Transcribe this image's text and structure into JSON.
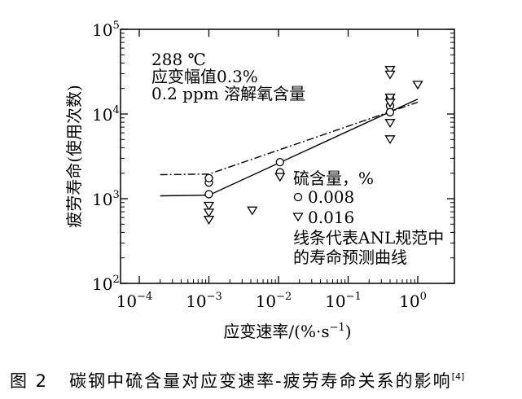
{
  "caption": {
    "figure_number": "图 2",
    "text": "碳钢中硫含量对应变速率-疲劳寿命关系的影响",
    "ref": "[4]"
  },
  "chart_data": {
    "type": "scatter",
    "xlabel": "应变速率/(%·s⁻¹)",
    "ylabel": "疲劳寿命(使用次数)",
    "x_scale": "log",
    "y_scale": "log",
    "xlim": [
      0.0001,
      1
    ],
    "ylim": [
      100,
      100000
    ],
    "x_ticks": [
      0.0001,
      0.001,
      0.01,
      0.1,
      1
    ],
    "x_tick_labels": [
      {
        "base": "10",
        "exp": "−4"
      },
      {
        "base": "10",
        "exp": "−3"
      },
      {
        "base": "10",
        "exp": "−2"
      },
      {
        "base": "10",
        "exp": "−1"
      },
      {
        "base": "10",
        "exp": "0"
      }
    ],
    "y_ticks": [
      100,
      1000,
      10000,
      100000
    ],
    "y_tick_labels": [
      {
        "base": "10",
        "exp": "2"
      },
      {
        "base": "10",
        "exp": "3"
      },
      {
        "base": "10",
        "exp": "4"
      },
      {
        "base": "10",
        "exp": "5"
      }
    ],
    "grid": false,
    "conditions": [
      "288 ℃",
      "应变幅值0.3%",
      "0.2 ppm 溶解氧含量"
    ],
    "legend": {
      "title": "硫含量，%",
      "placement": "center-right",
      "entries": [
        {
          "marker": "circle",
          "label": "0.008"
        },
        {
          "marker": "triangle-down",
          "label": "0.016"
        }
      ]
    },
    "curve_note": [
      "线条代表ANL规范中",
      "的寿命预测曲线"
    ],
    "series": [
      {
        "label": "0.008",
        "marker": "circle",
        "points": [
          {
            "x": 0.001,
            "y": 1550
          },
          {
            "x": 0.001,
            "y": 1750
          },
          {
            "x": 0.001,
            "y": 1130
          },
          {
            "x": 0.0105,
            "y": 2700
          },
          {
            "x": 0.0105,
            "y": 2050
          },
          {
            "x": 0.4,
            "y": 15500
          },
          {
            "x": 0.4,
            "y": 12500
          },
          {
            "x": 0.4,
            "y": 10500
          }
        ]
      },
      {
        "label": "0.016",
        "marker": "triangle-down",
        "points": [
          {
            "x": 0.001,
            "y": 820
          },
          {
            "x": 0.001,
            "y": 680
          },
          {
            "x": 0.001,
            "y": 560
          },
          {
            "x": 0.0042,
            "y": 720
          },
          {
            "x": 0.0105,
            "y": 1800
          },
          {
            "x": 0.4,
            "y": 33000
          },
          {
            "x": 0.4,
            "y": 29000
          },
          {
            "x": 0.4,
            "y": 15500
          },
          {
            "x": 0.4,
            "y": 13500
          },
          {
            "x": 0.4,
            "y": 7800
          },
          {
            "x": 0.4,
            "y": 5000
          },
          {
            "x": 1.0,
            "y": 22000
          }
        ]
      }
    ],
    "curves": [
      {
        "style": "solid",
        "points": [
          {
            "x": 0.0002,
            "y": 1080
          },
          {
            "x": 0.001,
            "y": 1100
          },
          {
            "x": 1.0,
            "y": 15000
          }
        ]
      },
      {
        "style": "dashdot",
        "points": [
          {
            "x": 0.0002,
            "y": 1920
          },
          {
            "x": 0.001,
            "y": 1950
          },
          {
            "x": 1.0,
            "y": 13800
          }
        ]
      }
    ]
  }
}
